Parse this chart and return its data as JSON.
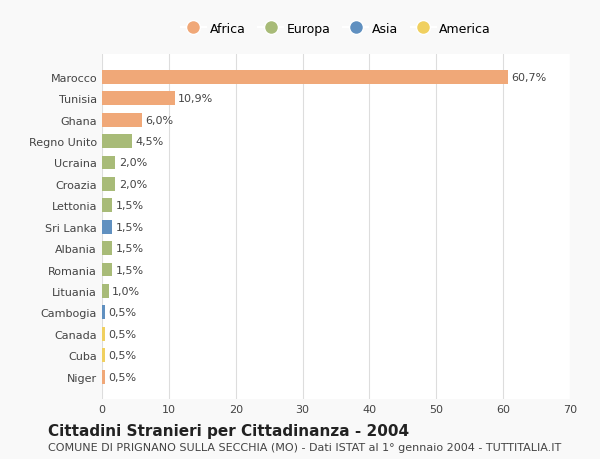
{
  "categories": [
    "Marocco",
    "Tunisia",
    "Ghana",
    "Regno Unito",
    "Ucraina",
    "Croazia",
    "Lettonia",
    "Sri Lanka",
    "Albania",
    "Romania",
    "Lituania",
    "Cambogia",
    "Canada",
    "Cuba",
    "Niger"
  ],
  "values": [
    60.7,
    10.9,
    6.0,
    4.5,
    2.0,
    2.0,
    1.5,
    1.5,
    1.5,
    1.5,
    1.0,
    0.5,
    0.5,
    0.5,
    0.5
  ],
  "labels": [
    "60,7%",
    "10,9%",
    "6,0%",
    "4,5%",
    "2,0%",
    "2,0%",
    "1,5%",
    "1,5%",
    "1,5%",
    "1,5%",
    "1,0%",
    "0,5%",
    "0,5%",
    "0,5%",
    "0,5%"
  ],
  "colors": [
    "#F0A878",
    "#F0A878",
    "#F0A878",
    "#A8BB78",
    "#A8BB78",
    "#A8BB78",
    "#A8BB78",
    "#6090C0",
    "#A8BB78",
    "#A8BB78",
    "#A8BB78",
    "#6090C0",
    "#F0D060",
    "#F0D060",
    "#F0A878"
  ],
  "legend_labels": [
    "Africa",
    "Europa",
    "Asia",
    "America"
  ],
  "legend_colors": [
    "#F0A878",
    "#A8BB78",
    "#6090C0",
    "#F0D060"
  ],
  "title": "Cittadini Stranieri per Cittadinanza - 2004",
  "subtitle": "COMUNE DI PRIGNANO SULLA SECCHIA (MO) - Dati ISTAT al 1° gennaio 2004 - TUTTITALIA.IT",
  "xlim": [
    0,
    70
  ],
  "xticks": [
    0,
    10,
    20,
    30,
    40,
    50,
    60,
    70
  ],
  "bg_color": "#f9f9f9",
  "bar_bg_color": "#ffffff",
  "grid_color": "#dddddd",
  "text_color": "#444444",
  "title_fontsize": 11,
  "subtitle_fontsize": 8,
  "tick_fontsize": 8,
  "label_fontsize": 8
}
